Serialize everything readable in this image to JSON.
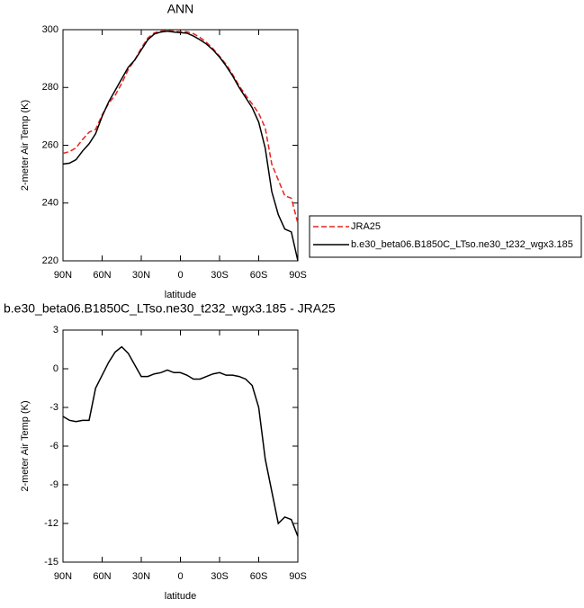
{
  "chart_data": [
    {
      "type": "line",
      "title": "ANN",
      "xlabel": "latitude",
      "ylabel": "2-meter Air Temp (K)",
      "x": [
        90,
        85,
        80,
        75,
        70,
        65,
        60,
        55,
        50,
        45,
        40,
        35,
        30,
        25,
        20,
        15,
        10,
        5,
        0,
        -5,
        -10,
        -15,
        -20,
        -25,
        -30,
        -35,
        -40,
        -45,
        -50,
        -55,
        -60,
        -65,
        -70,
        -75,
        -80,
        -85,
        -90
      ],
      "series": [
        {
          "name": "JRA25",
          "color": "#e8231f",
          "dash": true,
          "values": [
            257.2,
            257.8,
            259.1,
            262,
            264.5,
            265.5,
            270.5,
            274.5,
            277.3,
            281.4,
            286.2,
            289.5,
            293.6,
            297.1,
            298.9,
            299.5,
            299.6,
            299.5,
            299.3,
            299.3,
            298.6,
            297.3,
            295.6,
            293.4,
            290.8,
            288,
            284.5,
            280.6,
            277.3,
            274.3,
            271,
            266,
            253.5,
            248,
            242.5,
            241.7,
            233
          ]
        },
        {
          "name": "b.e30_beta06.B1850C_LTso.ne30_t232_wgx3.185",
          "color": "#000000",
          "dash": false,
          "values": [
            253.5,
            253.8,
            255,
            258,
            260.5,
            264,
            270,
            275,
            279,
            283,
            287,
            289.5,
            293,
            296.5,
            298.5,
            299.2,
            299.5,
            299.2,
            299,
            298.8,
            297.8,
            296.5,
            295,
            293,
            290.5,
            287.5,
            284,
            280,
            276.5,
            273,
            268,
            259,
            244,
            236,
            231,
            230,
            220
          ]
        }
      ],
      "xlim": [
        90,
        -90
      ],
      "xticks": [
        {
          "value": 90,
          "label": "90N"
        },
        {
          "value": 60,
          "label": "60N"
        },
        {
          "value": 30,
          "label": "30N"
        },
        0,
        {
          "value": -30,
          "label": "30S"
        },
        {
          "value": -60,
          "label": "60S"
        },
        {
          "value": -90,
          "label": "90S"
        }
      ],
      "ylim": [
        220,
        300
      ],
      "yticks": [
        220,
        240,
        260,
        280,
        300
      ],
      "legend": "outside-right"
    },
    {
      "type": "line",
      "title": "b.e30_beta06.B1850C_LTso.ne30_t232_wgx3.185 - JRA25",
      "xlabel": "latitude",
      "ylabel": "2-meter Air Temp (K)",
      "x": [
        90,
        85,
        80,
        75,
        70,
        65,
        60,
        55,
        50,
        45,
        40,
        35,
        30,
        25,
        20,
        15,
        10,
        5,
        0,
        -5,
        -10,
        -15,
        -20,
        -25,
        -30,
        -35,
        -40,
        -45,
        -50,
        -55,
        -60,
        -65,
        -70,
        -75,
        -80,
        -85,
        -90
      ],
      "series": [
        {
          "color": "#000000",
          "dash": false,
          "values": [
            -3.7,
            -4,
            -4.1,
            -4,
            -4,
            -1.5,
            -0.5,
            0.5,
            1.3,
            1.7,
            1.2,
            0.3,
            -0.6,
            -0.6,
            -0.4,
            -0.3,
            -0.1,
            -0.3,
            -0.3,
            -0.5,
            -0.8,
            -0.8,
            -0.6,
            -0.4,
            -0.3,
            -0.5,
            -0.5,
            -0.6,
            -0.8,
            -1.3,
            -3,
            -7,
            -9.5,
            -12,
            -11.5,
            -11.7,
            -13
          ]
        }
      ],
      "xlim": [
        90,
        -90
      ],
      "xticks": [
        {
          "value": 90,
          "label": "90N"
        },
        {
          "value": 60,
          "label": "60N"
        },
        {
          "value": 30,
          "label": "30N"
        },
        0,
        {
          "value": -30,
          "label": "30S"
        },
        {
          "value": -60,
          "label": "60S"
        },
        {
          "value": -90,
          "label": "90S"
        }
      ],
      "ylim": [
        -15,
        3
      ],
      "yticks": [
        -15,
        -12,
        -9,
        -6,
        -3,
        0,
        3
      ]
    }
  ]
}
